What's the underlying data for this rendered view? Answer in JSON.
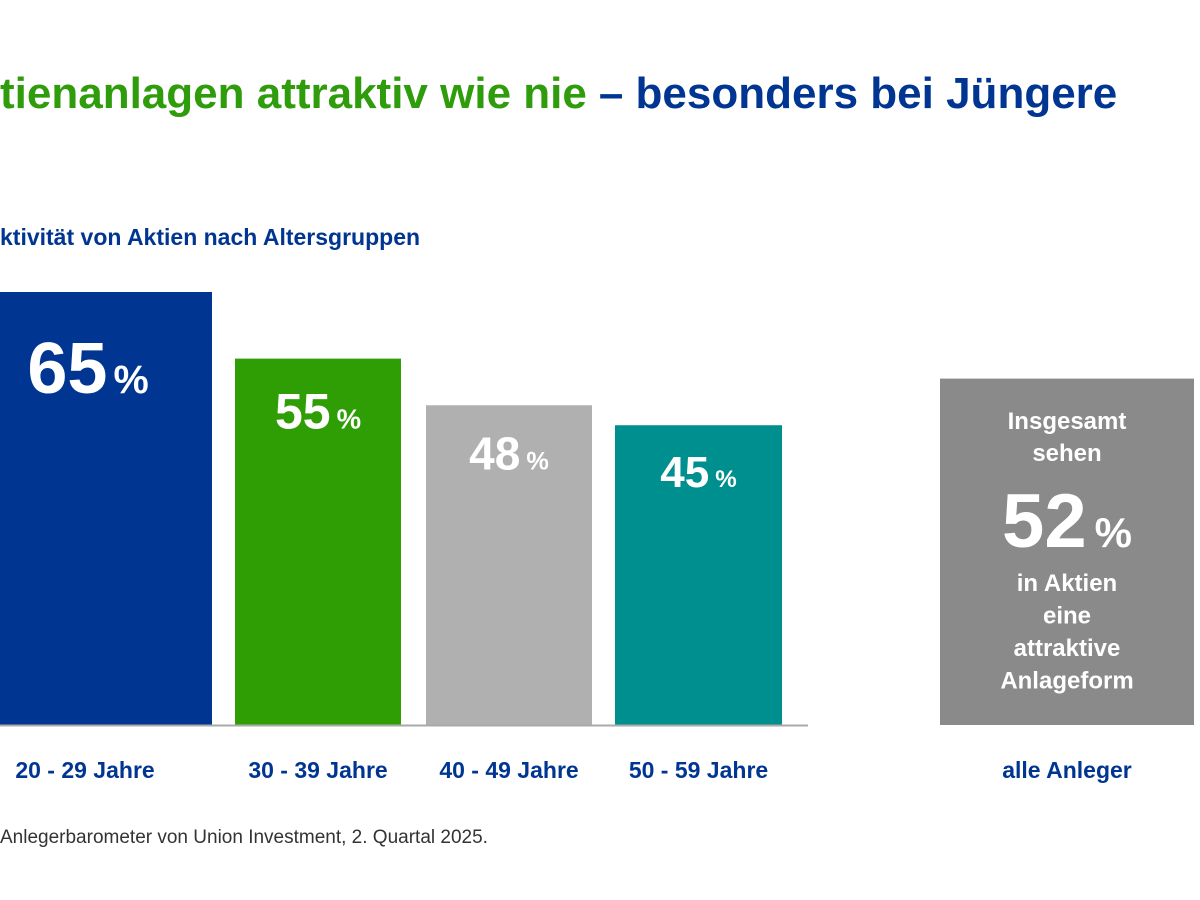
{
  "title": {
    "part1": "tienanlagen attraktiv wie nie",
    "part2": "– besonders bei Jüngere",
    "color1": "#2e9c0b",
    "color2": "#003592"
  },
  "subtitle": "ktivität von Aktien nach Altersgruppen",
  "source": "Anlegerbarometer von Union Investment, 2. Quartal 2025.",
  "chart_data": {
    "type": "bar",
    "title": "ktivität von Aktien nach Altersgruppen",
    "categories": [
      "20 - 29 Jahre",
      "30 - 39 Jahre",
      "40 - 49 Jahre",
      "50 - 59 Jahre"
    ],
    "values": [
      65,
      55,
      48,
      45
    ],
    "value_labels": [
      "65",
      "55",
      "48",
      "45"
    ],
    "unit": "%",
    "colors": [
      "#003591",
      "#2f9e05",
      "#b0b0b0",
      "#008f8f"
    ],
    "ylim": [
      0,
      65
    ],
    "grid": false,
    "summary": {
      "category": "alle Anleger",
      "value": 52,
      "value_label": "52",
      "color": "#8a8a8a",
      "text_before": [
        "Insgesamt",
        "sehen"
      ],
      "text_after": [
        "in Aktien",
        "eine",
        "attraktive",
        "Anlageform"
      ]
    }
  }
}
